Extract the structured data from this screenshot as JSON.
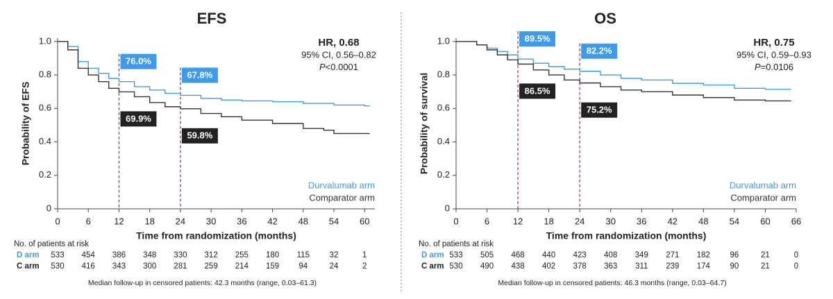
{
  "chart_data": [
    {
      "type": "line",
      "title": "EFS",
      "x_label": "Time from randomization (months)",
      "y_label": "Probability of EFS",
      "hr": "HR, 0.68",
      "ci": "95% CI, 0.56–0.82",
      "p_symbol": "P",
      "p_text": "<0.0001",
      "xlim": [
        0,
        62
      ],
      "ylim": [
        0,
        1.02
      ],
      "xticks": [
        0,
        6,
        12,
        18,
        24,
        30,
        36,
        42,
        48,
        54,
        60
      ],
      "yticks": [
        {
          "value": 0,
          "label": "0"
        },
        0.2,
        0.4,
        0.6,
        0.8,
        {
          "value": 1,
          "label": "1.0"
        }
      ],
      "step": true,
      "series": [
        {
          "name": "Durvalumab arm",
          "color": "#3d9be9",
          "x": [
            0,
            2,
            4,
            6,
            8,
            10,
            12,
            15,
            18,
            21,
            24,
            28,
            32,
            36,
            42,
            48,
            54,
            60,
            61
          ],
          "values": [
            1.0,
            0.97,
            0.88,
            0.84,
            0.81,
            0.78,
            0.76,
            0.73,
            0.71,
            0.69,
            0.678,
            0.66,
            0.65,
            0.645,
            0.64,
            0.63,
            0.62,
            0.615,
            0.615
          ]
        },
        {
          "name": "Comparator arm",
          "color": "#333333",
          "x": [
            0,
            2,
            4,
            6,
            8,
            10,
            12,
            15,
            18,
            21,
            24,
            28,
            32,
            36,
            42,
            48,
            52,
            54,
            56,
            61
          ],
          "values": [
            1.0,
            0.95,
            0.84,
            0.8,
            0.76,
            0.72,
            0.699,
            0.67,
            0.635,
            0.61,
            0.598,
            0.57,
            0.55,
            0.53,
            0.51,
            0.48,
            0.47,
            0.45,
            0.45,
            0.45
          ]
        }
      ],
      "landmarks": {
        "x": [
          12,
          24
        ],
        "series": [
          {
            "values": [
              0.76,
              0.678
            ],
            "value_labels": [
              "76.0%",
              "67.8%"
            ]
          },
          {
            "values": [
              0.699,
              0.598
            ],
            "value_labels": [
              "69.9%",
              "59.8%"
            ]
          }
        ]
      },
      "risk_table": {
        "title": "No. of patients at risk",
        "rows": [
          {
            "label": "D arm",
            "values": [
              533,
              454,
              386,
              348,
              330,
              312,
              255,
              180,
              115,
              32,
              1
            ]
          },
          {
            "label": "C arm",
            "values": [
              530,
              416,
              343,
              300,
              281,
              259,
              214,
              159,
              94,
              24,
              2
            ]
          }
        ]
      },
      "footnote": "Median follow-up in censored patients: 42.3 months (range, 0.03–61.3)"
    },
    {
      "type": "line",
      "title": "OS",
      "x_label": "Time from randomization (months)",
      "y_label": "Probability of survival",
      "hr": "HR, 0.75",
      "ci": "95% CI, 0.59–0.93",
      "p_symbol": "P",
      "p_text": "=0.0106",
      "xlim": [
        0,
        66
      ],
      "ylim": [
        0,
        1.02
      ],
      "xticks": [
        0,
        6,
        12,
        18,
        24,
        30,
        36,
        42,
        48,
        54,
        60,
        66
      ],
      "yticks": [
        {
          "value": 0,
          "label": "0"
        },
        0.2,
        0.4,
        0.6,
        0.8,
        {
          "value": 1,
          "label": "1.0"
        }
      ],
      "step": true,
      "series": [
        {
          "name": "Durvalumab arm",
          "color": "#3d9be9",
          "x": [
            0,
            4,
            6,
            8,
            10,
            12,
            15,
            18,
            21,
            24,
            28,
            32,
            36,
            42,
            48,
            54,
            60,
            65
          ],
          "values": [
            1.0,
            0.98,
            0.96,
            0.94,
            0.92,
            0.895,
            0.87,
            0.85,
            0.835,
            0.822,
            0.8,
            0.78,
            0.77,
            0.75,
            0.74,
            0.72,
            0.715,
            0.715
          ]
        },
        {
          "name": "Comparator arm",
          "color": "#333333",
          "x": [
            0,
            4,
            6,
            8,
            10,
            12,
            15,
            18,
            21,
            24,
            28,
            32,
            36,
            42,
            48,
            54,
            60,
            65
          ],
          "values": [
            1.0,
            0.98,
            0.95,
            0.92,
            0.89,
            0.865,
            0.83,
            0.8,
            0.77,
            0.752,
            0.73,
            0.71,
            0.7,
            0.68,
            0.665,
            0.65,
            0.645,
            0.645
          ]
        }
      ],
      "landmarks": {
        "x": [
          12,
          24
        ],
        "series": [
          {
            "values": [
              0.895,
              0.822
            ],
            "value_labels": [
              "89.5%",
              "82.2%"
            ]
          },
          {
            "values": [
              0.865,
              0.752
            ],
            "value_labels": [
              "86.5%",
              "75.2%"
            ]
          }
        ]
      },
      "risk_table": {
        "title": "No. of patients at risk",
        "rows": [
          {
            "label": "D arm",
            "values": [
              533,
              505,
              468,
              440,
              423,
              408,
              349,
              271,
              182,
              96,
              21,
              0
            ]
          },
          {
            "label": "C arm",
            "values": [
              530,
              490,
              438,
              402,
              378,
              363,
              311,
              239,
              174,
              90,
              21,
              0
            ]
          }
        ]
      },
      "footnote": "Median follow-up in censored patients: 46.3 months (range, 0.03–64.7)"
    }
  ]
}
